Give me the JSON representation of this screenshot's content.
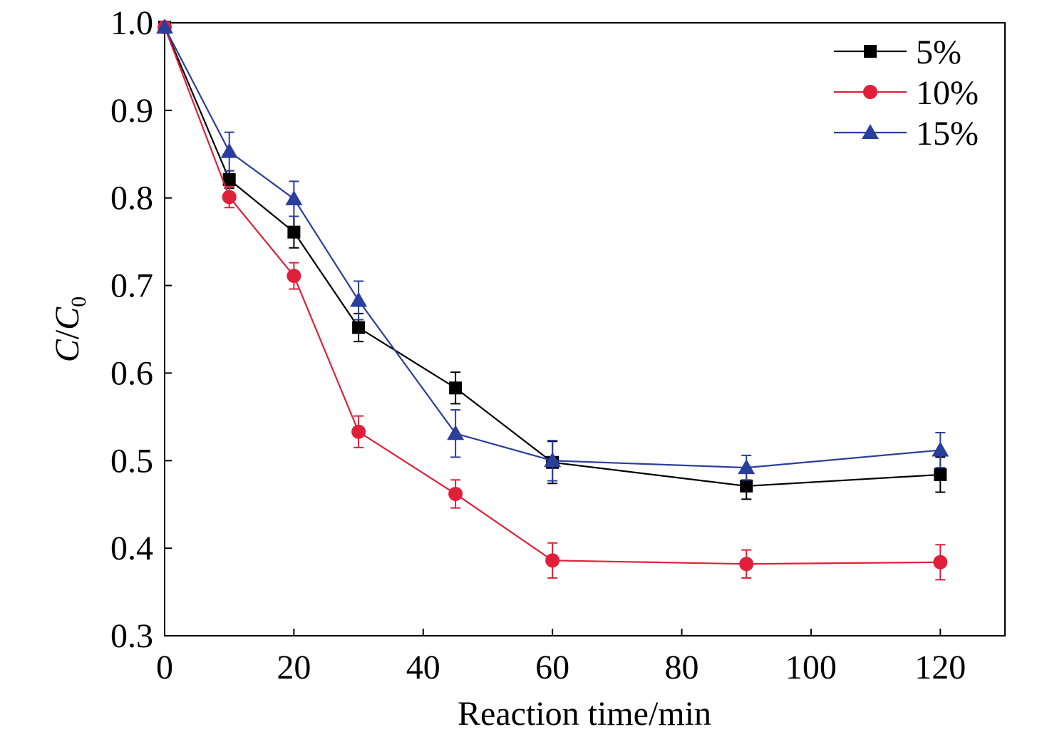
{
  "chart_data": {
    "type": "line",
    "title": "",
    "xlabel": "Reaction time/min",
    "ylabel_main": "C",
    "ylabel_sep": "/",
    "ylabel_c": "C",
    "ylabel_sub": "0",
    "xlim": [
      0,
      130
    ],
    "ylim": [
      0.3,
      1.0
    ],
    "xticks": [
      0,
      20,
      40,
      60,
      80,
      100,
      120
    ],
    "xtick_labels": [
      "0",
      "20",
      "40",
      "60",
      "80",
      "100",
      "120"
    ],
    "yticks": [
      0.3,
      0.4,
      0.5,
      0.6,
      0.7,
      0.8,
      0.9,
      1.0
    ],
    "ytick_labels": [
      "0.3",
      "0.4",
      "0.5",
      "0.6",
      "0.7",
      "0.8",
      "0.9",
      "1.0"
    ],
    "grid": false,
    "legend_position": "top-right",
    "x": [
      0,
      10,
      20,
      30,
      45,
      60,
      90,
      120
    ],
    "series": [
      {
        "name": "5%",
        "color": "#000000",
        "marker": "square",
        "values": [
          0.995,
          0.821,
          0.761,
          0.652,
          0.583,
          0.498,
          0.471,
          0.484
        ],
        "errors": [
          0.0,
          0.01,
          0.018,
          0.016,
          0.018,
          0.024,
          0.015,
          0.02
        ]
      },
      {
        "name": "10%",
        "color": "#e0203a",
        "marker": "circle",
        "values": [
          0.995,
          0.801,
          0.711,
          0.533,
          0.462,
          0.386,
          0.382,
          0.384
        ],
        "errors": [
          0.0,
          0.012,
          0.015,
          0.018,
          0.016,
          0.02,
          0.016,
          0.02
        ]
      },
      {
        "name": "15%",
        "color": "#2a3f9c",
        "marker": "triangle",
        "values": [
          0.995,
          0.853,
          0.799,
          0.683,
          0.531,
          0.5,
          0.492,
          0.512
        ],
        "errors": [
          0.0,
          0.022,
          0.02,
          0.022,
          0.027,
          0.023,
          0.014,
          0.02
        ]
      }
    ]
  }
}
